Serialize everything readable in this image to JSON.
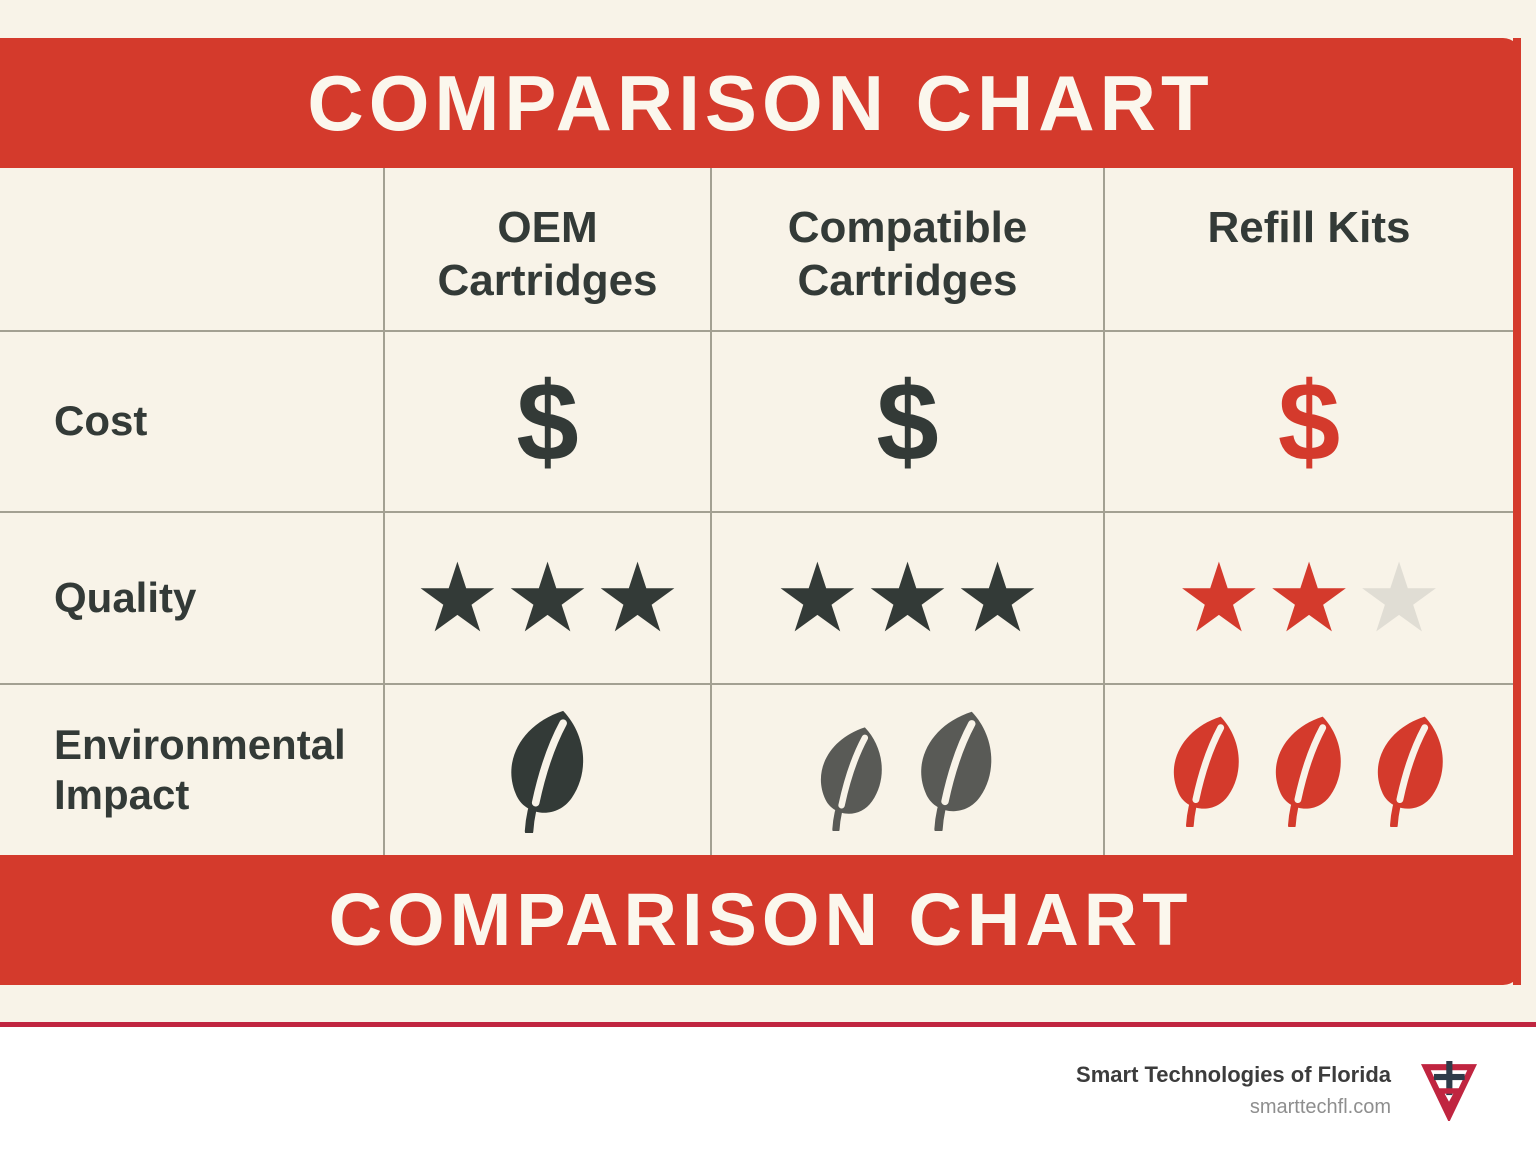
{
  "banners": {
    "top": "COMPARISON CHART",
    "bottom": "COMPARISON CHART"
  },
  "table": {
    "columns": [
      "OEM Cartridges",
      "Compatible Cartridges",
      "Refill Kits"
    ],
    "rows": [
      {
        "label": "Cost",
        "cells": [
          {
            "icon": "dollar",
            "count": 1,
            "color": "dark"
          },
          {
            "icon": "dollar",
            "count": 1,
            "color": "dark"
          },
          {
            "icon": "dollar",
            "count": 1,
            "color": "red"
          }
        ]
      },
      {
        "label": "Quality",
        "cells": [
          {
            "icon": "star",
            "filled": 3,
            "total": 3,
            "color": "dark"
          },
          {
            "icon": "star",
            "filled": 3,
            "total": 3,
            "color": "dark"
          },
          {
            "icon": "star",
            "filled": 2,
            "total": 3,
            "color": "red"
          }
        ]
      },
      {
        "label": "Environmental Impact",
        "cells": [
          {
            "icon": "leaf",
            "count": 1,
            "color": "dark"
          },
          {
            "icon": "leaf",
            "count": 2,
            "color": "gray"
          },
          {
            "icon": "leaf",
            "count": 3,
            "color": "red"
          }
        ]
      }
    ]
  },
  "footer": {
    "company": "Smart Technologies of Florida",
    "website": "smarttechfl.com"
  },
  "icons": {
    "star_glyph": "★",
    "dollar_glyph": "$"
  },
  "colors": {
    "red": "#D43A2C",
    "dark": "#333A37",
    "gray": "#595A56",
    "cream": "#F8F3E8",
    "grid": "#A3A092",
    "star-empty": "#E0DDD4",
    "crimson": "#C02540",
    "white": "#FFFFFF",
    "banner-text": "#FBF7ED",
    "footer-text": "#3C3C3C",
    "footer-muted": "#8E8E8E",
    "logo-navy": "#2E3B49"
  },
  "chart_data": {
    "type": "table",
    "title": "COMPARISON CHART",
    "columns": [
      "OEM Cartridges",
      "Compatible Cartridges",
      "Refill Kits"
    ],
    "rows": [
      "Cost",
      "Quality",
      "Environmental Impact"
    ],
    "values": {
      "Cost": {
        "OEM Cartridges": "$ (1 of 1, dark)",
        "Compatible Cartridges": "$ (1 of 1, dark)",
        "Refill Kits": "$ (1 of 1, red = cheapest highlight)"
      },
      "Quality": {
        "OEM Cartridges": "3 of 3 stars",
        "Compatible Cartridges": "3 of 3 stars",
        "Refill Kits": "2 of 3 stars"
      },
      "Environmental Impact": {
        "OEM Cartridges": "1 leaf",
        "Compatible Cartridges": "2 leaves",
        "Refill Kits": "3 leaves"
      }
    },
    "legend_position": "none",
    "grid": true
  }
}
